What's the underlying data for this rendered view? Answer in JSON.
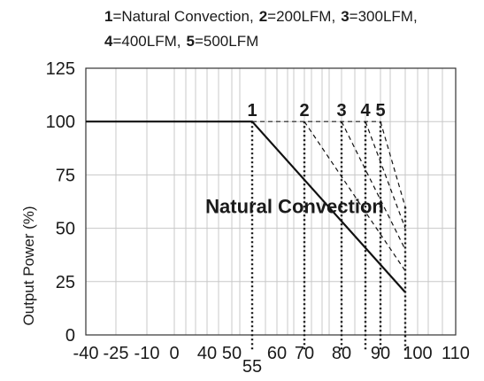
{
  "chart_data": {
    "type": "line",
    "title": "",
    "legend": {
      "line1": [
        {
          "num": "1",
          "text": "=Natural Convection,"
        },
        {
          "num": "2",
          "text": "=200LFM,"
        },
        {
          "num": "3",
          "text": "=300LFM,"
        }
      ],
      "line2": [
        {
          "num": "4",
          "text": "=400LFM,"
        },
        {
          "num": "5",
          "text": "=500LFM"
        }
      ]
    },
    "xlabel": "",
    "ylabel": "Output Power (%)",
    "x_ticks": [
      {
        "value": -40,
        "label": "-40"
      },
      {
        "value": -25,
        "label": "-25"
      },
      {
        "value": -10,
        "label": "-10"
      },
      {
        "value": 0,
        "label": "0"
      },
      {
        "value": 40,
        "label": "40"
      },
      {
        "value": 50,
        "label": "50"
      },
      {
        "value": 55,
        "label": "55"
      },
      {
        "value": 60,
        "label": "60"
      },
      {
        "value": 70,
        "label": "70"
      },
      {
        "value": 80,
        "label": "80"
      },
      {
        "value": 90,
        "label": "90"
      },
      {
        "value": 100,
        "label": "100"
      },
      {
        "value": 110,
        "label": "110"
      }
    ],
    "y_ticks": [
      0,
      25,
      50,
      75,
      100,
      125
    ],
    "ylim": [
      0,
      125
    ],
    "grid": true,
    "series": [
      {
        "marker": "1",
        "style": "solid",
        "x": [
          -40,
          55,
          95
        ],
        "y": [
          100,
          100,
          20
        ]
      },
      {
        "marker": "2",
        "style": "dashed",
        "x": [
          70,
          95
        ],
        "y": [
          100,
          30
        ]
      },
      {
        "marker": "3",
        "style": "dashed",
        "x": [
          80,
          95
        ],
        "y": [
          100,
          40
        ]
      },
      {
        "marker": "4",
        "style": "dashed",
        "x": [
          85,
          95
        ],
        "y": [
          100,
          50
        ]
      },
      {
        "marker": "5",
        "style": "dashed",
        "x": [
          90,
          95
        ],
        "y": [
          100,
          60
        ]
      }
    ],
    "dashed_top_line": {
      "x": [
        55,
        90
      ],
      "y": [
        100,
        100
      ]
    },
    "dotted_drop_lines": [
      {
        "x": 55,
        "y_from": 100
      },
      {
        "x": 70,
        "y_from": 100
      },
      {
        "x": 80,
        "y_from": 100
      },
      {
        "x": 85,
        "y_from": 100
      },
      {
        "x": 90,
        "y_from": 100
      },
      {
        "x": 95,
        "y_from": 60
      }
    ],
    "annotation": {
      "text": "Natural Convection",
      "x": 38,
      "y": 57
    }
  }
}
